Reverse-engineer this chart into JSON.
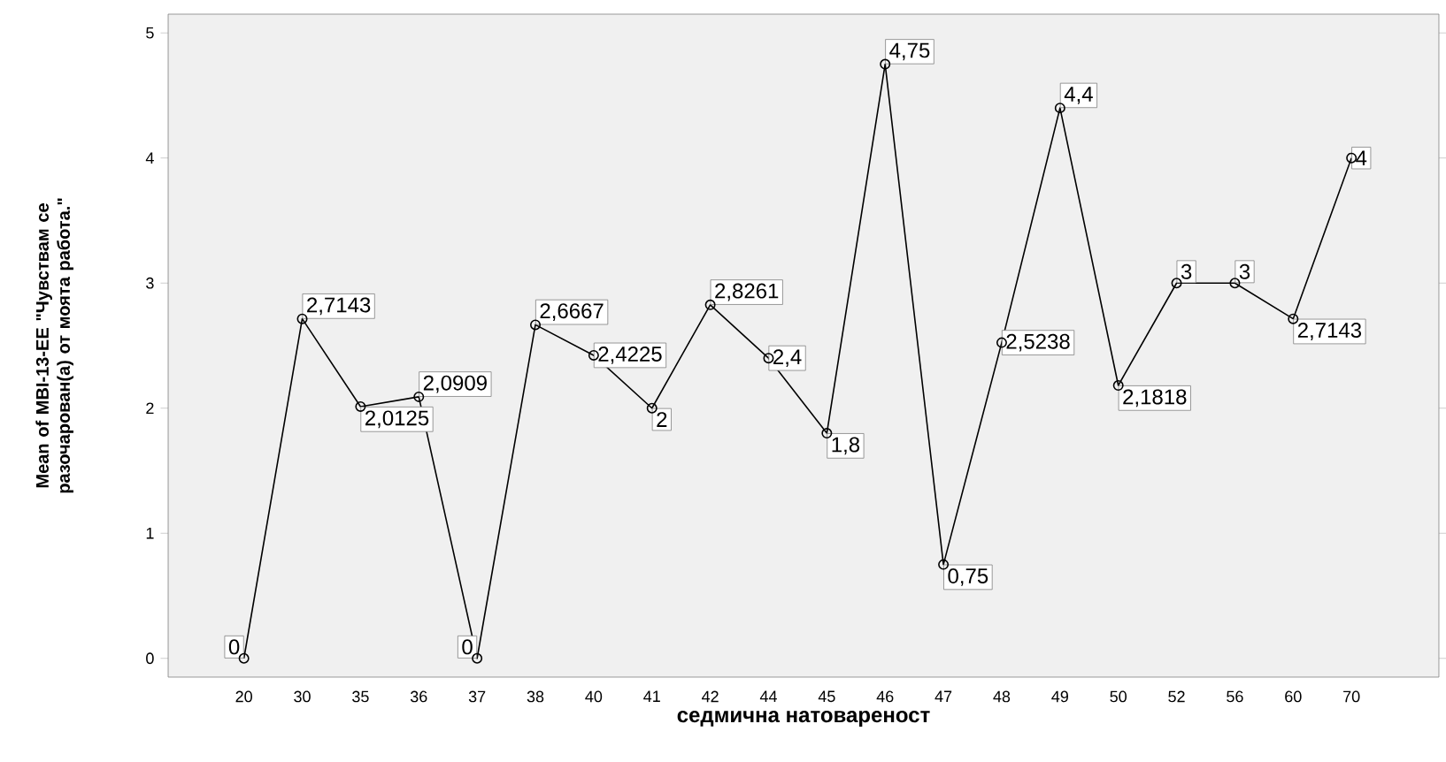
{
  "chart_data": {
    "type": "line",
    "xlabel": "седмична натовареност",
    "ylabel": "Mean of MBI-13-EE \"Чувствам се разочарован(а) от моята работа.\"",
    "categories": [
      "20",
      "30",
      "35",
      "36",
      "37",
      "38",
      "40",
      "41",
      "42",
      "44",
      "45",
      "46",
      "47",
      "48",
      "49",
      "50",
      "52",
      "56",
      "60",
      "70"
    ],
    "values": [
      0,
      2.7143,
      2.0125,
      2.0909,
      0,
      2.6667,
      2.4225,
      2,
      2.8261,
      2.4,
      1.8,
      4.75,
      0.75,
      2.5238,
      4.4,
      2.1818,
      3,
      3,
      2.7143,
      4
    ],
    "value_labels": [
      "0",
      "2,7143",
      "2,0125",
      "2,0909",
      "0",
      "2,6667",
      "2,4225",
      "2",
      "2,8261",
      "2,4",
      "1,8",
      "4,75",
      "0,75",
      "2,5238",
      "4,4",
      "2,1818",
      "3",
      "3",
      "2,7143",
      "4"
    ],
    "color": "#000000",
    "marker": "circle",
    "ylim": [
      -0.15,
      5.15
    ],
    "yticks": [
      0,
      1,
      2,
      3,
      4,
      5
    ],
    "grid": false
  }
}
